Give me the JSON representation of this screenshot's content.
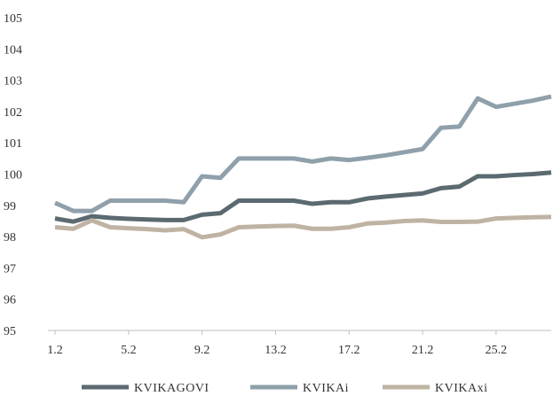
{
  "chart_data": {
    "type": "line",
    "title": "",
    "xlabel": "",
    "ylabel": "",
    "ylim": [
      95,
      105
    ],
    "yticks": [
      "95",
      "96",
      "97",
      "98",
      "99",
      "100",
      "101",
      "102",
      "103",
      "104",
      "105"
    ],
    "xtick_labels": [
      {
        "label": "1.2",
        "index": 0
      },
      {
        "label": "5.2",
        "index": 4
      },
      {
        "label": "9.2",
        "index": 8
      },
      {
        "label": "13.2",
        "index": 12
      },
      {
        "label": "17.2",
        "index": 16
      },
      {
        "label": "21.2",
        "index": 20
      },
      {
        "label": "25.2",
        "index": 24
      }
    ],
    "grid": false,
    "legend": "bottom",
    "series": [
      {
        "name": "KVIKAGOVI",
        "color": "#5a6a70",
        "values": [
          98.58,
          98.48,
          98.65,
          98.6,
          98.57,
          98.55,
          98.53,
          98.53,
          98.7,
          98.75,
          99.15,
          99.15,
          99.15,
          99.15,
          99.05,
          99.1,
          99.1,
          99.22,
          99.28,
          99.33,
          99.38,
          99.55,
          99.6,
          99.93,
          99.93,
          99.97,
          100.0,
          100.05
        ]
      },
      {
        "name": "KVIKAi",
        "color": "#8fa0ab",
        "values": [
          99.08,
          98.82,
          98.82,
          99.15,
          99.15,
          99.15,
          99.15,
          99.1,
          99.93,
          99.88,
          100.5,
          100.5,
          100.5,
          100.5,
          100.4,
          100.5,
          100.45,
          100.52,
          100.6,
          100.7,
          100.8,
          101.48,
          101.52,
          102.42,
          102.15,
          102.25,
          102.35,
          102.48
        ]
      },
      {
        "name": "KVIKAxi",
        "color": "#bfb3a3",
        "values": [
          98.3,
          98.25,
          98.52,
          98.3,
          98.27,
          98.24,
          98.2,
          98.24,
          97.98,
          98.07,
          98.3,
          98.32,
          98.34,
          98.35,
          98.25,
          98.25,
          98.3,
          98.42,
          98.45,
          98.5,
          98.52,
          98.47,
          98.47,
          98.48,
          98.58,
          98.6,
          98.62,
          98.63
        ]
      }
    ]
  }
}
